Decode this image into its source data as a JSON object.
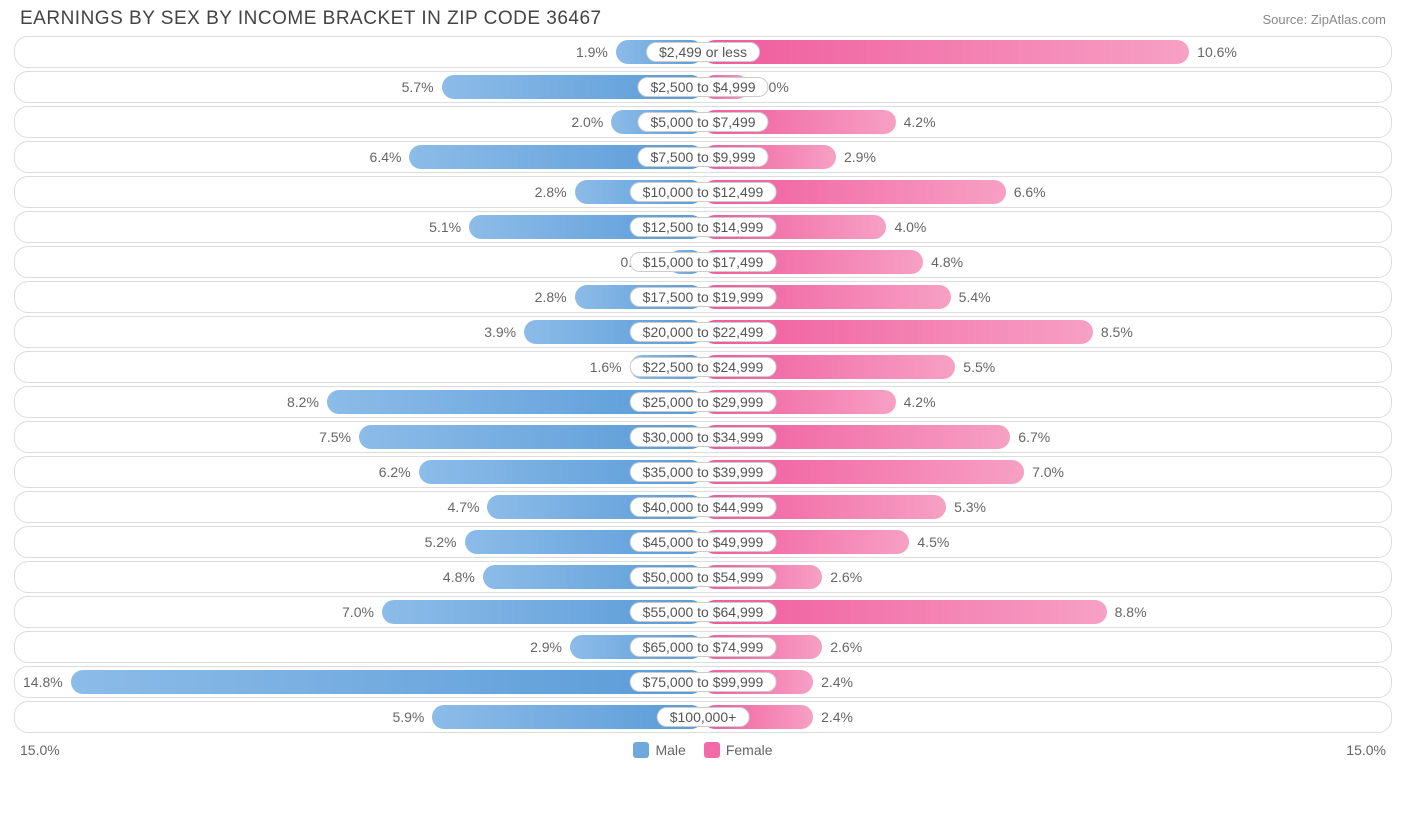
{
  "title": "EARNINGS BY SEX BY INCOME BRACKET IN ZIP CODE 36467",
  "source": "Source: ZipAtlas.com",
  "axis_max": 15.0,
  "axis_label_left": "15.0%",
  "axis_label_right": "15.0%",
  "colors": {
    "male_start": "#5a9bd8",
    "male_end": "#8cbce8",
    "female_start": "#ef5a9c",
    "female_end": "#f7a0c4",
    "row_border": "#dddddd",
    "label_border": "#cccccc",
    "text": "#666666",
    "title_text": "#444444",
    "source_text": "#888888",
    "background": "#ffffff"
  },
  "legend": {
    "male": {
      "label": "Male",
      "color": "#6fa8dc"
    },
    "female": {
      "label": "Female",
      "color": "#f06ba8"
    }
  },
  "rows": [
    {
      "bracket": "$2,499 or less",
      "male": 1.9,
      "male_label": "1.9%",
      "female": 10.6,
      "female_label": "10.6%"
    },
    {
      "bracket": "$2,500 to $4,999",
      "male": 5.7,
      "male_label": "5.7%",
      "female": 1.0,
      "female_label": "1.0%"
    },
    {
      "bracket": "$5,000 to $7,499",
      "male": 2.0,
      "male_label": "2.0%",
      "female": 4.2,
      "female_label": "4.2%"
    },
    {
      "bracket": "$7,500 to $9,999",
      "male": 6.4,
      "male_label": "6.4%",
      "female": 2.9,
      "female_label": "2.9%"
    },
    {
      "bracket": "$10,000 to $12,499",
      "male": 2.8,
      "male_label": "2.8%",
      "female": 6.6,
      "female_label": "6.6%"
    },
    {
      "bracket": "$12,500 to $14,999",
      "male": 5.1,
      "male_label": "5.1%",
      "female": 4.0,
      "female_label": "4.0%"
    },
    {
      "bracket": "$15,000 to $17,499",
      "male": 0.76,
      "male_label": "0.76%",
      "female": 4.8,
      "female_label": "4.8%"
    },
    {
      "bracket": "$17,500 to $19,999",
      "male": 2.8,
      "male_label": "2.8%",
      "female": 5.4,
      "female_label": "5.4%"
    },
    {
      "bracket": "$20,000 to $22,499",
      "male": 3.9,
      "male_label": "3.9%",
      "female": 8.5,
      "female_label": "8.5%"
    },
    {
      "bracket": "$22,500 to $24,999",
      "male": 1.6,
      "male_label": "1.6%",
      "female": 5.5,
      "female_label": "5.5%"
    },
    {
      "bracket": "$25,000 to $29,999",
      "male": 8.2,
      "male_label": "8.2%",
      "female": 4.2,
      "female_label": "4.2%"
    },
    {
      "bracket": "$30,000 to $34,999",
      "male": 7.5,
      "male_label": "7.5%",
      "female": 6.7,
      "female_label": "6.7%"
    },
    {
      "bracket": "$35,000 to $39,999",
      "male": 6.2,
      "male_label": "6.2%",
      "female": 7.0,
      "female_label": "7.0%"
    },
    {
      "bracket": "$40,000 to $44,999",
      "male": 4.7,
      "male_label": "4.7%",
      "female": 5.3,
      "female_label": "5.3%"
    },
    {
      "bracket": "$45,000 to $49,999",
      "male": 5.2,
      "male_label": "5.2%",
      "female": 4.5,
      "female_label": "4.5%"
    },
    {
      "bracket": "$50,000 to $54,999",
      "male": 4.8,
      "male_label": "4.8%",
      "female": 2.6,
      "female_label": "2.6%"
    },
    {
      "bracket": "$55,000 to $64,999",
      "male": 7.0,
      "male_label": "7.0%",
      "female": 8.8,
      "female_label": "8.8%"
    },
    {
      "bracket": "$65,000 to $74,999",
      "male": 2.9,
      "male_label": "2.9%",
      "female": 2.6,
      "female_label": "2.6%"
    },
    {
      "bracket": "$75,000 to $99,999",
      "male": 14.8,
      "male_label": "14.8%",
      "female": 2.4,
      "female_label": "2.4%"
    },
    {
      "bracket": "$100,000+",
      "male": 5.9,
      "male_label": "5.9%",
      "female": 2.4,
      "female_label": "2.4%"
    }
  ]
}
